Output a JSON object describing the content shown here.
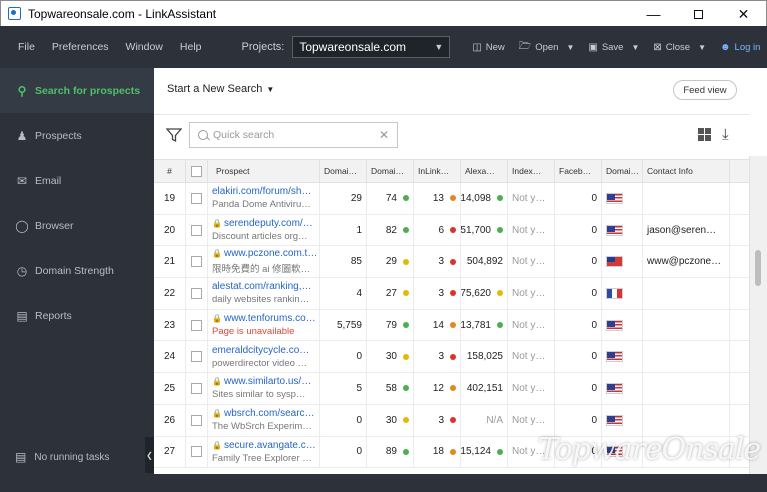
{
  "window": {
    "title": "Topwareonsale.com - LinkAssistant",
    "controls": [
      "minimize",
      "maximize",
      "close"
    ]
  },
  "menu": {
    "items": [
      "File",
      "Preferences",
      "Window",
      "Help"
    ]
  },
  "toolbar": {
    "projects_label": "Projects:",
    "project_value": "Topwareonsale.com",
    "new_label": "New",
    "open_label": "Open",
    "save_label": "Save",
    "close_label": "Close",
    "login_label": "Log in"
  },
  "sidebar": {
    "items": [
      {
        "label": "Search for prospects",
        "icon": "search-icon",
        "active": true
      },
      {
        "label": "Prospects",
        "icon": "person-icon",
        "active": false
      },
      {
        "label": "Email",
        "icon": "email-icon",
        "active": false
      },
      {
        "label": "Browser",
        "icon": "globe-icon",
        "active": false
      },
      {
        "label": "Domain Strength",
        "icon": "gauge-icon",
        "active": false
      },
      {
        "label": "Reports",
        "icon": "report-icon",
        "active": false
      }
    ],
    "tasks_label": "No running tasks"
  },
  "main": {
    "search_header": "Start a New Search",
    "feed_view_label": "Feed view",
    "quick_search_placeholder": "Quick search"
  },
  "table": {
    "columns": [
      "#",
      "",
      "Prospect",
      "Domai…",
      "Domai…",
      "InLink…",
      "Alexa…",
      "Index…",
      "Faceb…",
      "Domai…",
      "Contact Info"
    ],
    "rows": [
      {
        "n": "19",
        "url": "elakiri.com/forum/sh…",
        "lock": false,
        "sub": "Panda Dome Antiviru…",
        "sub_err": false,
        "d1": "29",
        "d2": "74",
        "d2c": "#4caf50",
        "inl": "13",
        "inlc": "#e08a1e",
        "alexa": "14,098",
        "alexac": "#4caf50",
        "index": "Not y…",
        "fb": "0",
        "flag": "us",
        "contact": ""
      },
      {
        "n": "20",
        "url": "serendeputy.com/…",
        "lock": true,
        "sub": "Discount articles org…",
        "sub_err": false,
        "d1": "1",
        "d2": "82",
        "d2c": "#4caf50",
        "inl": "6",
        "inlc": "#d9342b",
        "alexa": "51,700",
        "alexac": "#4caf50",
        "index": "Not y…",
        "fb": "0",
        "flag": "us",
        "contact": "jason@seren…"
      },
      {
        "n": "21",
        "url": "www.pczone.com.t…",
        "lock": true,
        "sub": "限時免費的 ai 修圖軟…",
        "sub_err": false,
        "d1": "85",
        "d2": "29",
        "d2c": "#e6b800",
        "inl": "3",
        "inlc": "#d9342b",
        "alexa": "504,892",
        "alexac": "",
        "index": "Not y…",
        "fb": "0",
        "flag": "tw",
        "contact": "www@pczone…"
      },
      {
        "n": "22",
        "url": "alestat.com/ranking,…",
        "lock": false,
        "sub": "daily websites rankin…",
        "sub_err": false,
        "d1": "4",
        "d2": "27",
        "d2c": "#e6b800",
        "inl": "3",
        "inlc": "#d9342b",
        "alexa": "75,620",
        "alexac": "#e6b800",
        "index": "Not y…",
        "fb": "0",
        "flag": "fr",
        "contact": ""
      },
      {
        "n": "23",
        "url": "www.tenforums.co…",
        "lock": true,
        "sub": "Page is unavailable",
        "sub_err": true,
        "d1": "5,759",
        "d2": "79",
        "d2c": "#4caf50",
        "inl": "14",
        "inlc": "#e08a1e",
        "alexa": "13,781",
        "alexac": "#4caf50",
        "index": "Not y…",
        "fb": "0",
        "flag": "us",
        "contact": ""
      },
      {
        "n": "24",
        "url": "emeraldcitycycle.co…",
        "lock": false,
        "sub": "powerdirector video …",
        "sub_err": false,
        "d1": "0",
        "d2": "30",
        "d2c": "#e6b800",
        "inl": "3",
        "inlc": "#d9342b",
        "alexa": "158,025",
        "alexac": "",
        "index": "Not y…",
        "fb": "0",
        "flag": "us",
        "contact": ""
      },
      {
        "n": "25",
        "url": "www.similarto.us/…",
        "lock": true,
        "sub": "Sites similar to sysp…",
        "sub_err": false,
        "d1": "5",
        "d2": "58",
        "d2c": "#4caf50",
        "inl": "12",
        "inlc": "#e08a1e",
        "alexa": "402,151",
        "alexac": "",
        "index": "Not y…",
        "fb": "0",
        "flag": "us",
        "contact": ""
      },
      {
        "n": "26",
        "url": "wbsrch.com/searc…",
        "lock": true,
        "sub": "The WbSrch Experim…",
        "sub_err": false,
        "d1": "0",
        "d2": "30",
        "d2c": "#e6b800",
        "inl": "3",
        "inlc": "#d9342b",
        "alexa": "N/A",
        "alexac": "",
        "index": "Not y…",
        "fb": "0",
        "flag": "us",
        "contact": ""
      },
      {
        "n": "27",
        "url": "secure.avangate.c…",
        "lock": true,
        "sub": "Family Tree Explorer …",
        "sub_err": false,
        "d1": "0",
        "d2": "89",
        "d2c": "#4caf50",
        "inl": "18",
        "inlc": "#e08a1e",
        "alexa": "15,124",
        "alexac": "#4caf50",
        "index": "Not y…",
        "fb": "0",
        "flag": "us",
        "contact": ""
      }
    ]
  },
  "watermark": "TopwareOnsale"
}
